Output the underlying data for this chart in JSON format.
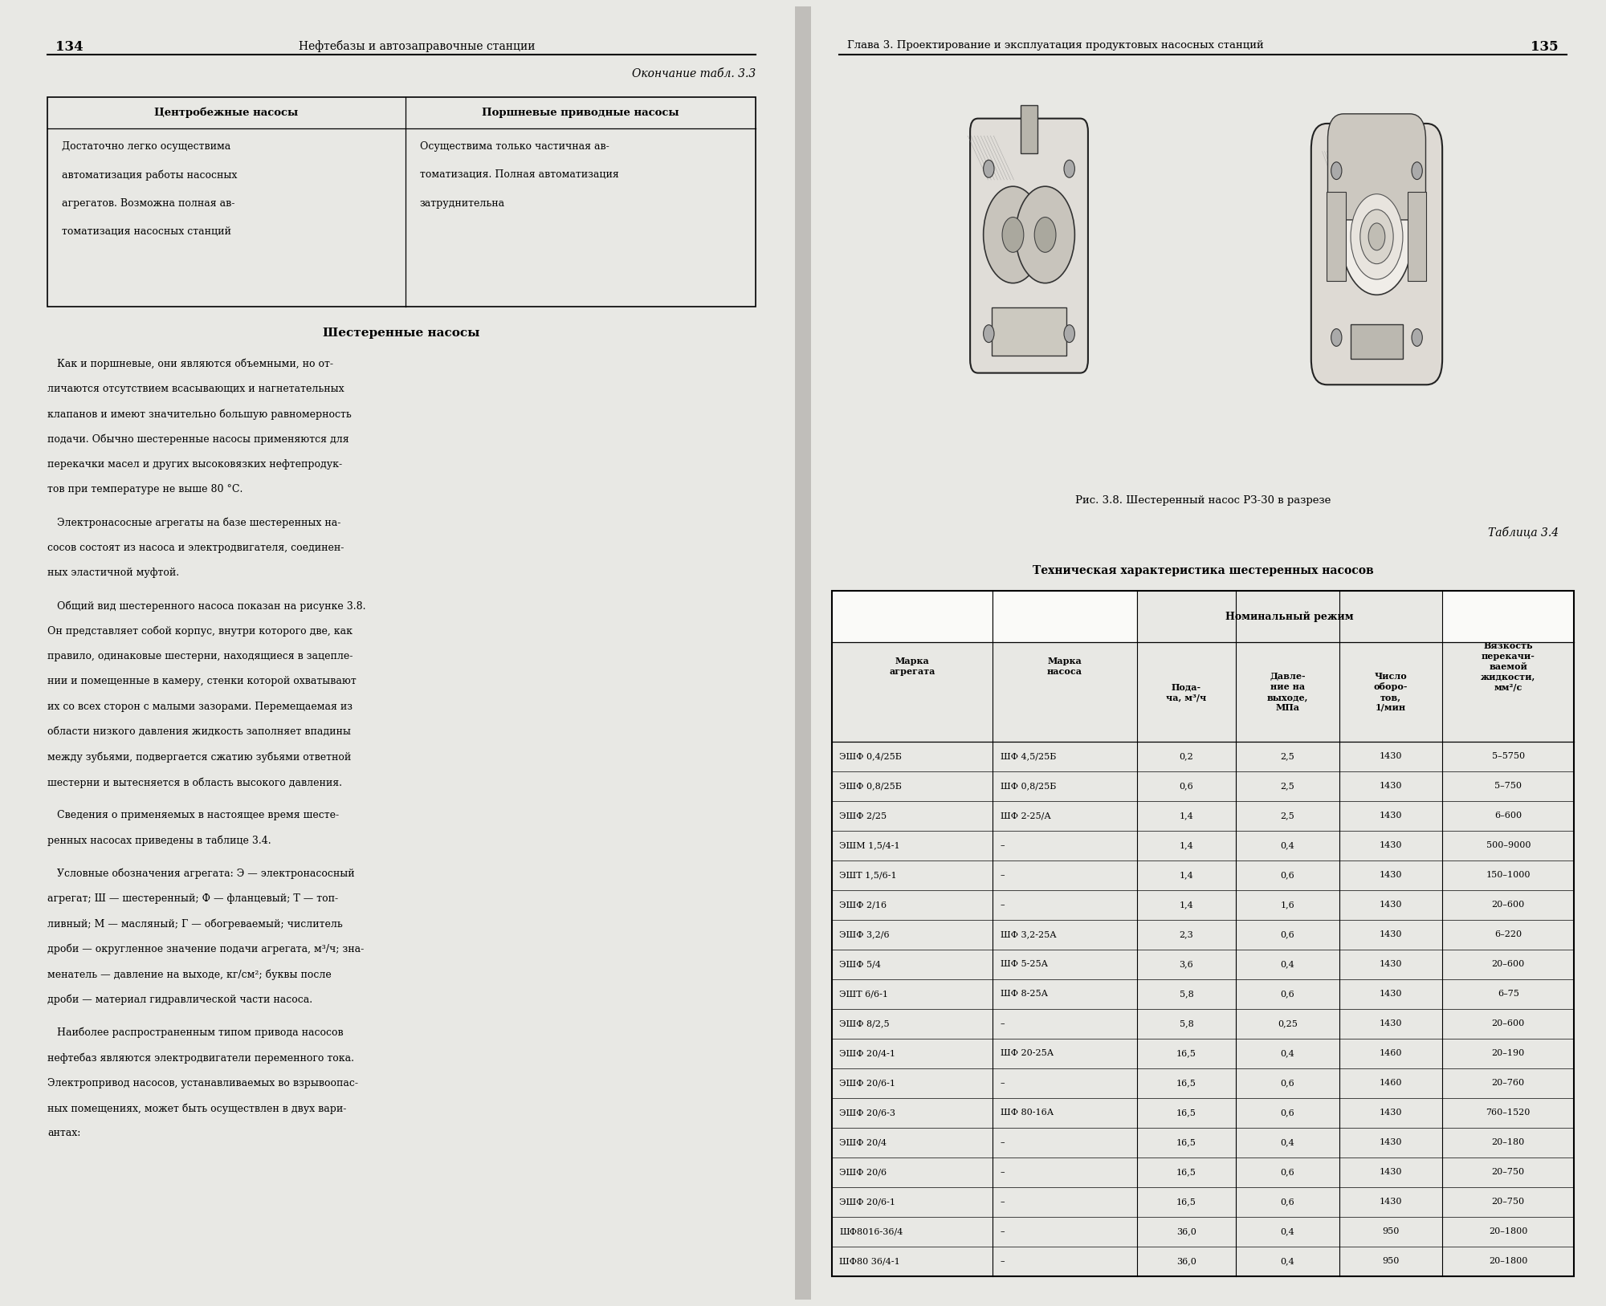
{
  "bg_color": "#e8e8e4",
  "page_bg": "#fafaf8",
  "left_page_num": "134",
  "right_page_num": "135",
  "left_header": "Нефтебазы и автозаправочные станции",
  "right_header": "Глава 3. Проектирование и эксплуатация продуктовых насосных станций",
  "table33_title": "Окончание табл. 3.3",
  "table33_col1_header": "Центробежные насосы",
  "table33_col2_header": "Поршневые приводные насосы",
  "table33_col1_lines": [
    "Достаточно легко осуществима",
    "автоматизация работы насосных",
    "агрегатов. Возможна полная ав-",
    "томатизация насосных станций"
  ],
  "table33_col2_lines": [
    "Осуществима только частичная ав-",
    "томатизация. Полная автоматизация",
    "затруднительна"
  ],
  "section_title": "Шестеренные насосы",
  "left_body_paragraphs": [
    [
      "   Как и поршневые, они являются объемными, но от-",
      "личаются отсутствием всасывающих и нагнетательных",
      "клапанов и имеют значительно большую равномерность",
      "подачи. Обычно шестеренные насосы применяются для",
      "перекачки масел и других высоковязких нефтепродук-",
      "тов при температуре не выше 80 °С."
    ],
    [
      "   Электронасосные агрегаты на базе шестеренных на-",
      "сосов состоят из насоса и электродвигателя, соединен-",
      "ных эластичной муфтой."
    ],
    [
      "   Общий вид шестеренного насоса показан на рисунке 3.8.",
      "Он представляет собой корпус, внутри которого две, как",
      "правило, одинаковые шестерни, находящиеся в зацепле-",
      "нии и помещенные в камеру, стенки которой охватывают",
      "их со всех сторон с малыми зазорами. Перемещаемая из",
      "области низкого давления жидкость заполняет впадины",
      "между зубьями, подвергается сжатию зубьями ответной",
      "шестерни и вытесняется в область высокого давления."
    ],
    [
      "   Сведения о применяемых в настоящее время шесте-",
      "ренных насосах приведены в таблице 3.4."
    ],
    [
      "   Условные обозначения агрегата: Э — электронасосный",
      "агрегат; Ш — шестеренный; Ф — фланцевый; Т — топ-",
      "ливный; М — масляный; Г — обогреваемый; числитель",
      "дроби — округленное значение подачи агрегата, м³/ч; зна-",
      "менатель — давление на выходе, кг/см²; буквы после",
      "дроби — материал гидравлической части насоса."
    ],
    [
      "   Наиболее распространенным типом привода насосов",
      "нефтебаз являются электродвигатели переменного тока.",
      "Электропривод насосов, устанавливаемых во взрывоопас-",
      "ных помещениях, может быть осуществлен в двух вари-",
      "антах:"
    ]
  ],
  "fig_caption_bold": "Рис. 3.8.",
  "fig_caption_rest": " Шестеренный насос РЗ-30 в разрезе",
  "table34_title_italic": "Таблица 3.4",
  "table34_title_bold": "Техническая характеристика шестеренных насосов",
  "table34_col_headers_row1": [
    "Марка\nагрегата",
    "Марка\nнасоса",
    "Номинальный режим",
    "Вязкость\nперекачи-\nваемой\nжидкости,\nмм²/с"
  ],
  "table34_col_headers_row2": [
    "Пода-\nча, м³/ч",
    "Давле-\nние на\nвыходе,\nМПа",
    "Число\nоборо-\nтов,\n1/мин"
  ],
  "table34_rows": [
    [
      "ЭШФ 0,4/25Б",
      "ШФ 4,5/25Б",
      "0,2",
      "2,5",
      "1430",
      "5–5750"
    ],
    [
      "ЭШФ 0,8/25Б",
      "ШФ 0,8/25Б",
      "0,6",
      "2,5",
      "1430",
      "5–750"
    ],
    [
      "ЭШФ 2/25",
      "ШФ 2-25/А",
      "1,4",
      "2,5",
      "1430",
      "6–600"
    ],
    [
      "ЭШМ 1,5/4-1",
      "–",
      "1,4",
      "0,4",
      "1430",
      "500–9000"
    ],
    [
      "ЭШТ 1,5/6-1",
      "–",
      "1,4",
      "0,6",
      "1430",
      "150–1000"
    ],
    [
      "ЭШФ 2/16",
      "–",
      "1,4",
      "1,6",
      "1430",
      "20–600"
    ],
    [
      "ЭШФ 3,2/6",
      "ШФ 3,2-25А",
      "2,3",
      "0,6",
      "1430",
      "6–220"
    ],
    [
      "ЭШФ 5/4",
      "ШФ 5-25А",
      "3,6",
      "0,4",
      "1430",
      "20–600"
    ],
    [
      "ЭШТ 6/6-1",
      "ШФ 8-25А",
      "5,8",
      "0,6",
      "1430",
      "6–75"
    ],
    [
      "ЭШФ 8/2,5",
      "–",
      "5,8",
      "0,25",
      "1430",
      "20–600"
    ],
    [
      "ЭШФ 20/4-1",
      "ШФ 20-25А",
      "16,5",
      "0,4",
      "1460",
      "20–190"
    ],
    [
      "ЭШФ 20/6-1",
      "–",
      "16,5",
      "0,6",
      "1460",
      "20–760"
    ],
    [
      "ЭШФ 20/6-3",
      "ШФ 80-16А",
      "16,5",
      "0,6",
      "1430",
      "760–1520"
    ],
    [
      "ЭШФ 20/4",
      "–",
      "16,5",
      "0,4",
      "1430",
      "20–180"
    ],
    [
      "ЭШФ 20/6",
      "–",
      "16,5",
      "0,6",
      "1430",
      "20–750"
    ],
    [
      "ЭШФ 20/6-1",
      "–",
      "16,5",
      "0,6",
      "1430",
      "20–750"
    ],
    [
      "ШФ8016-36/4",
      "–",
      "36,0",
      "0,4",
      "950",
      "20–1800"
    ],
    [
      "ШФ80 36/4-1",
      "–",
      "36,0",
      "0,4",
      "950",
      "20–1800"
    ]
  ]
}
